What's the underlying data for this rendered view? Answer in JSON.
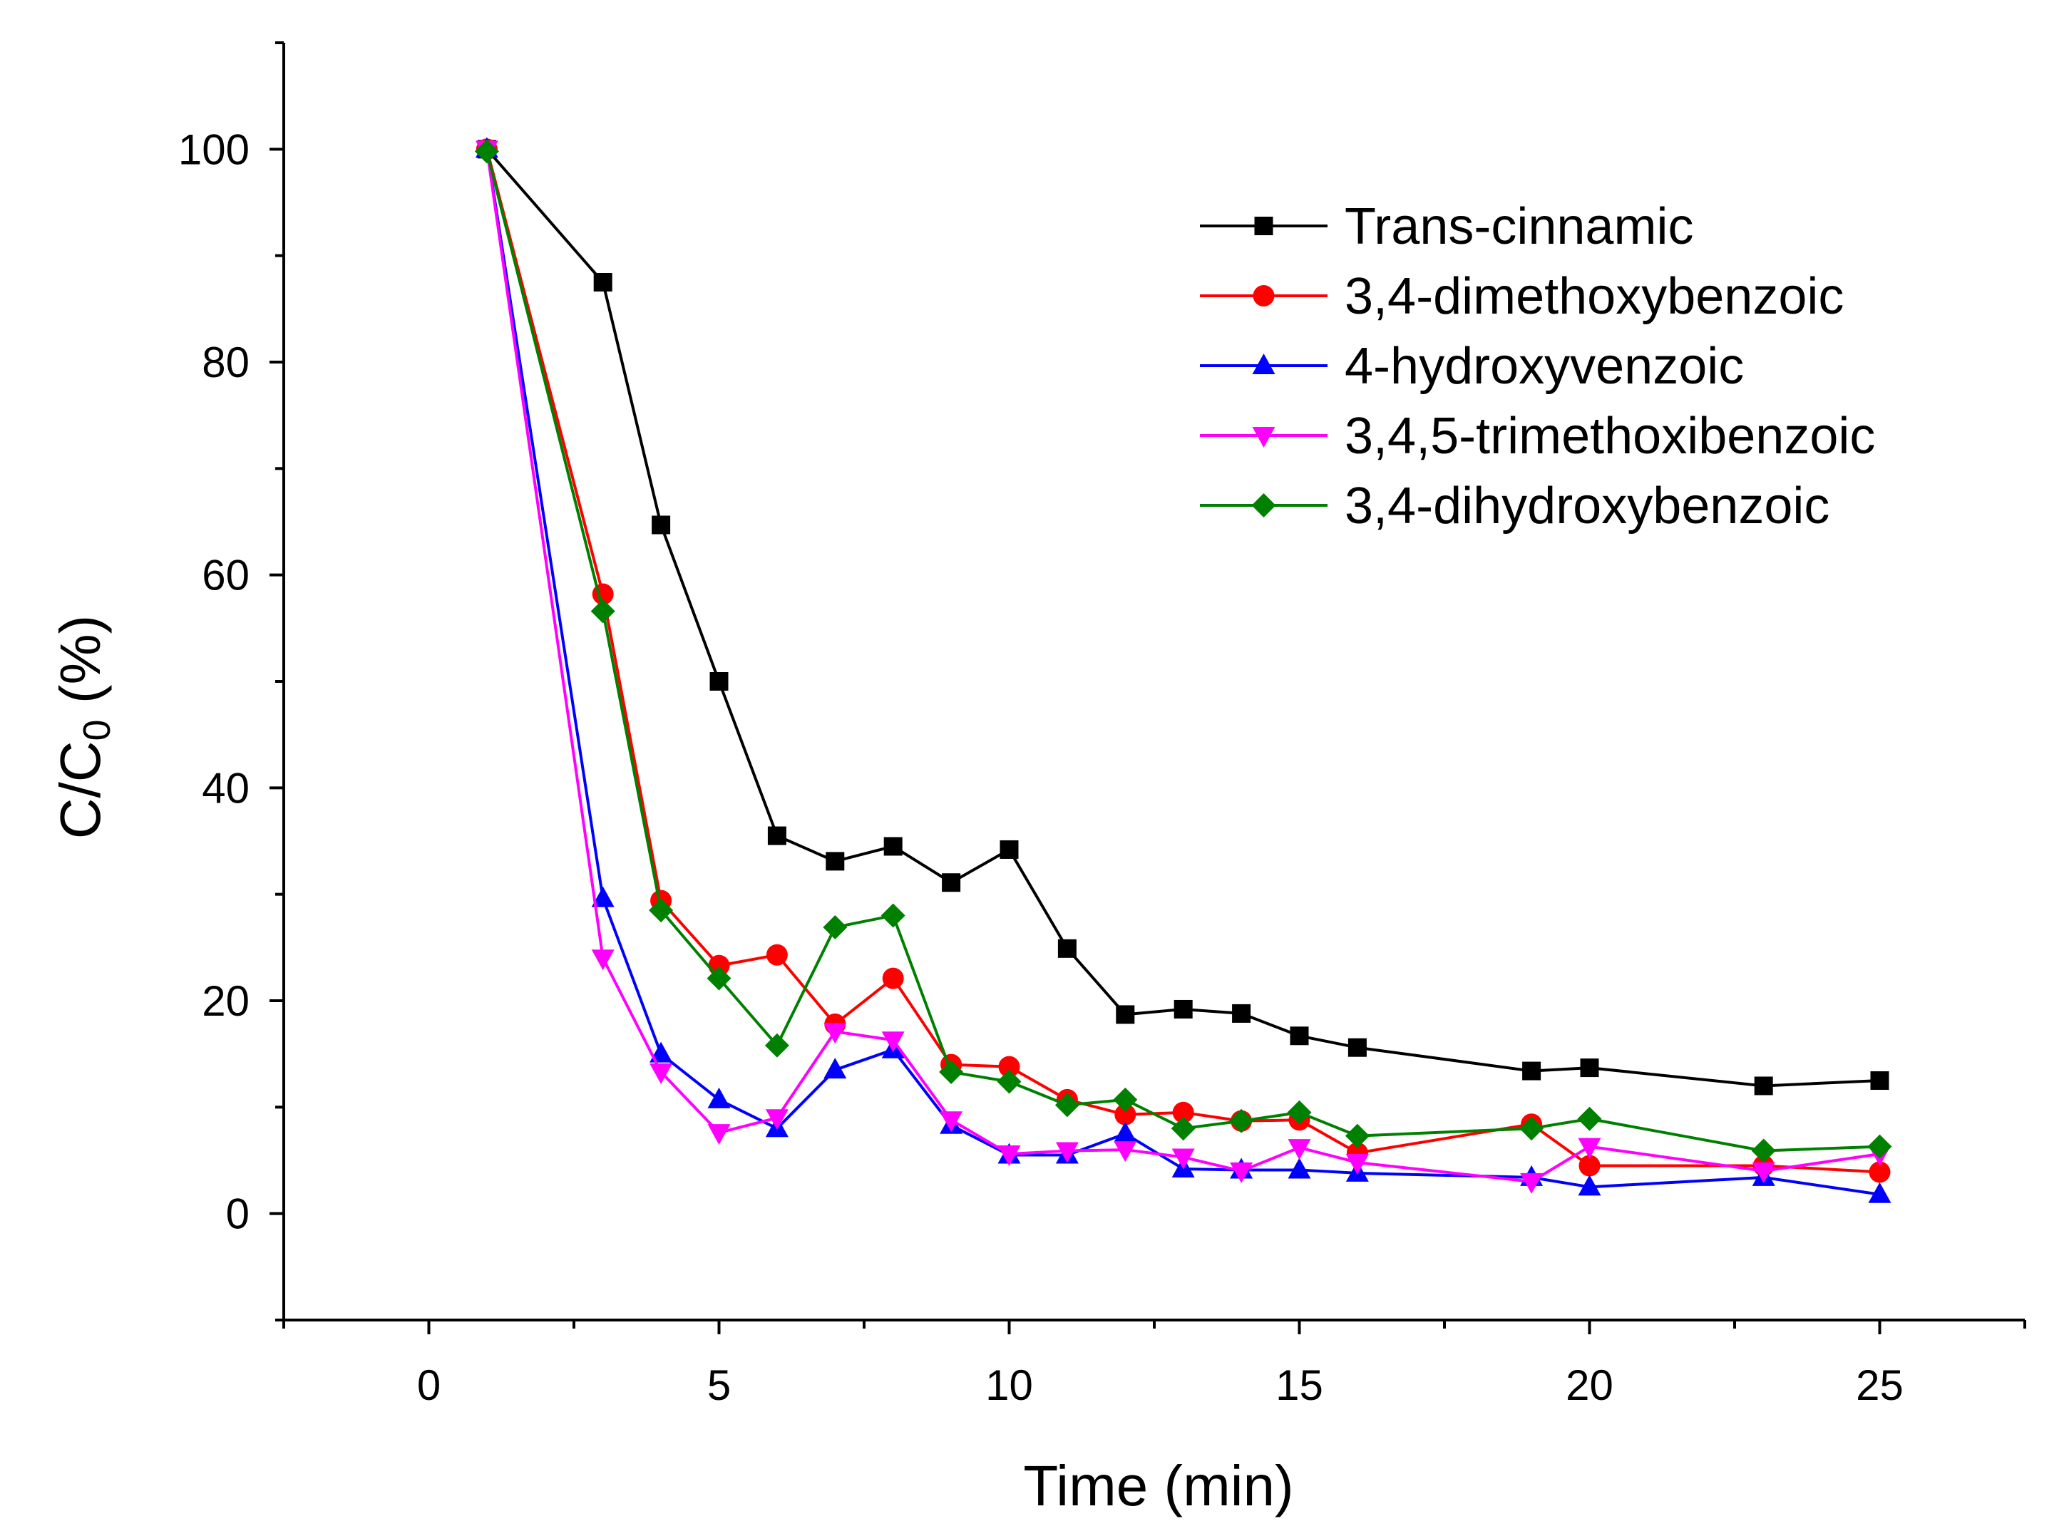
{
  "chart_data": {
    "type": "line",
    "title": "",
    "xlabel": "Time (min)",
    "ylabel": {
      "main": "C/C",
      "subscript": "0",
      "suffix": " (%)"
    },
    "xlim": [
      -2.5,
      27.5
    ],
    "ylim": [
      -10,
      110
    ],
    "xticks": [
      0,
      5,
      10,
      15,
      20,
      25
    ],
    "yticks": [
      0,
      20,
      40,
      60,
      80,
      100
    ],
    "xtick_labels": [
      "0",
      "5",
      "10",
      "15",
      "20",
      "25"
    ],
    "ytick_labels": [
      "0",
      "20",
      "40",
      "60",
      "80",
      "100"
    ],
    "legend_position": "top-right",
    "grid": false,
    "series": [
      {
        "name": "Trans-cinnamic",
        "color": "#000000",
        "marker": "square",
        "x": [
          1,
          3,
          4,
          5,
          6,
          7,
          8,
          9,
          10,
          11,
          12,
          13,
          14,
          15,
          16,
          19,
          20,
          23,
          25
        ],
        "y": [
          100,
          87.5,
          64.7,
          50,
          35.5,
          33.1,
          34.5,
          31.1,
          34.2,
          24.9,
          18.7,
          19.2,
          18.8,
          16.7,
          15.6,
          13.4,
          13.7,
          12,
          12.5
        ]
      },
      {
        "name": "3,4-dimethoxybenzoic",
        "color": "#ff0000",
        "marker": "circle",
        "x": [
          1,
          3,
          4,
          5,
          6,
          7,
          8,
          9,
          10,
          11,
          12,
          13,
          14,
          15,
          16,
          19,
          20,
          23,
          25
        ],
        "y": [
          100,
          58.2,
          29.4,
          23.3,
          24.3,
          17.8,
          22.1,
          14,
          13.8,
          10.7,
          9.3,
          9.5,
          8.7,
          8.8,
          5.7,
          8.4,
          4.5,
          4.5,
          3.9
        ]
      },
      {
        "name": "4-hydroxyvenzoic",
        "color": "#0000ff",
        "marker": "triangle-up",
        "x": [
          1,
          3,
          4,
          5,
          6,
          7,
          8,
          9,
          10,
          11,
          12,
          13,
          14,
          15,
          16,
          19,
          20,
          23,
          25
        ],
        "y": [
          100,
          29.6,
          15,
          10.7,
          8,
          13.5,
          15.4,
          8.3,
          5.5,
          5.5,
          7.5,
          4.2,
          4.1,
          4.1,
          3.8,
          3.4,
          2.5,
          3.4,
          1.8
        ]
      },
      {
        "name": "3,4,5-trimethoxibenzoic",
        "color": "#ff00ff",
        "marker": "triangle-down",
        "x": [
          1,
          3,
          4,
          5,
          6,
          7,
          8,
          9,
          10,
          11,
          12,
          13,
          14,
          15,
          16,
          19,
          20,
          23,
          25
        ],
        "y": [
          100,
          24,
          13.3,
          7.6,
          9,
          17.1,
          16.3,
          8.8,
          5.6,
          5.9,
          6,
          5.3,
          4,
          6.2,
          4.8,
          3,
          6.3,
          4,
          5.6
        ]
      },
      {
        "name": "3,4-dihydroxybenzoic",
        "color": "#008000",
        "marker": "diamond",
        "x": [
          1,
          3,
          4,
          5,
          6,
          7,
          8,
          9,
          10,
          11,
          12,
          13,
          14,
          15,
          16,
          19,
          20,
          23,
          25
        ],
        "y": [
          99.8,
          56.6,
          28.5,
          22.1,
          15.8,
          26.9,
          28,
          13.3,
          12.4,
          10.2,
          10.7,
          8,
          8.7,
          9.5,
          7.3,
          8,
          8.9,
          5.9,
          6.3
        ]
      }
    ]
  }
}
